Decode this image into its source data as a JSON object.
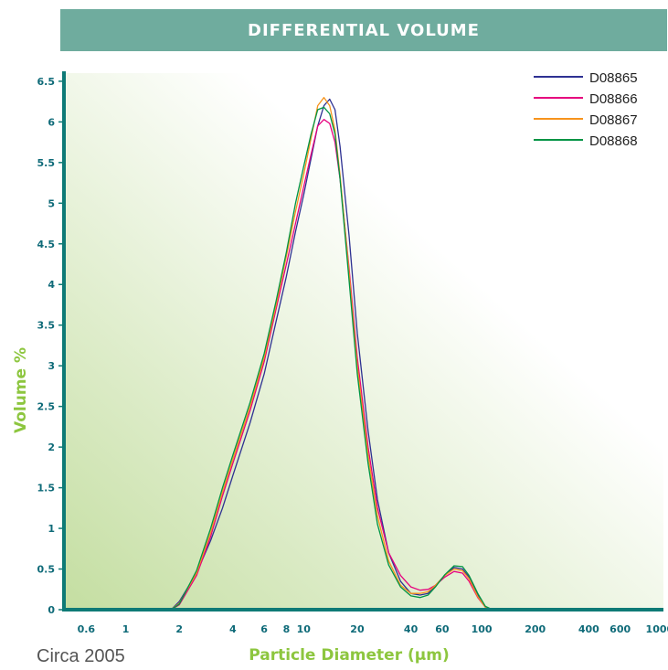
{
  "title": "DIFFERENTIAL VOLUME",
  "footnote": "Circa 2005",
  "colors": {
    "header_bg": "#6fac9e",
    "axis": "#0e7a76",
    "tick_label": "#0e6a78",
    "axis_title": "#8dc63f",
    "gradient_light": "#ffffff",
    "gradient_dark": "#c4dea1"
  },
  "chart_data": {
    "type": "line",
    "title": "DIFFERENTIAL VOLUME",
    "xlabel": "Particle Diameter (µm)",
    "ylabel": "Volume %",
    "x_scale": "log",
    "xlim": [
      0.45,
      1050
    ],
    "ylim": [
      0,
      6.6
    ],
    "x_ticks": [
      0.6,
      1,
      2,
      4,
      6,
      8,
      10,
      20,
      40,
      60,
      100,
      200,
      400,
      600,
      1000
    ],
    "x_tick_labels": [
      "0.6",
      "1",
      "2",
      "4",
      "6",
      "8",
      "10",
      "20",
      "40",
      "60",
      "100",
      "200",
      "400",
      "600",
      "1000"
    ],
    "y_ticks": [
      0,
      0.5,
      1,
      1.5,
      2,
      2.5,
      3,
      3.5,
      4,
      4.5,
      5,
      5.5,
      6,
      6.5
    ],
    "y_tick_labels": [
      "0",
      "0.5",
      "1",
      "1.5",
      "2",
      "2.5",
      "3",
      "3.5",
      "4",
      "4.5",
      "5",
      "5.5",
      "6",
      "6.5"
    ],
    "legend_position": "top-right",
    "grid": false,
    "series": [
      {
        "name": "D08865",
        "color": "#2e3192",
        "points": [
          [
            0.45,
            0
          ],
          [
            1.8,
            0
          ],
          [
            2.0,
            0.1
          ],
          [
            2.5,
            0.45
          ],
          [
            3.0,
            0.85
          ],
          [
            3.5,
            1.25
          ],
          [
            4.0,
            1.65
          ],
          [
            5.0,
            2.3
          ],
          [
            6.0,
            2.9
          ],
          [
            7.0,
            3.55
          ],
          [
            8.0,
            4.1
          ],
          [
            9.0,
            4.65
          ],
          [
            10.0,
            5.1
          ],
          [
            11.0,
            5.55
          ],
          [
            12.0,
            5.95
          ],
          [
            13.0,
            6.2
          ],
          [
            14.0,
            6.28
          ],
          [
            15.0,
            6.15
          ],
          [
            16.0,
            5.7
          ],
          [
            18.0,
            4.6
          ],
          [
            20.0,
            3.4
          ],
          [
            23.0,
            2.2
          ],
          [
            26.0,
            1.35
          ],
          [
            30.0,
            0.7
          ],
          [
            35.0,
            0.35
          ],
          [
            40.0,
            0.2
          ],
          [
            45.0,
            0.18
          ],
          [
            50.0,
            0.2
          ],
          [
            55.0,
            0.3
          ],
          [
            62.0,
            0.42
          ],
          [
            70.0,
            0.52
          ],
          [
            78.0,
            0.5
          ],
          [
            85.0,
            0.4
          ],
          [
            95.0,
            0.18
          ],
          [
            105.0,
            0.03
          ],
          [
            115.0,
            0
          ],
          [
            1050,
            0
          ]
        ]
      },
      {
        "name": "D08866",
        "color": "#e6007e",
        "points": [
          [
            0.45,
            0
          ],
          [
            1.8,
            0
          ],
          [
            2.0,
            0.06
          ],
          [
            2.5,
            0.42
          ],
          [
            3.0,
            0.9
          ],
          [
            3.5,
            1.4
          ],
          [
            4.0,
            1.8
          ],
          [
            5.0,
            2.45
          ],
          [
            6.0,
            3.05
          ],
          [
            7.0,
            3.7
          ],
          [
            8.0,
            4.25
          ],
          [
            9.0,
            4.75
          ],
          [
            10.0,
            5.2
          ],
          [
            11.0,
            5.6
          ],
          [
            12.0,
            5.95
          ],
          [
            13.0,
            6.03
          ],
          [
            14.0,
            5.98
          ],
          [
            15.0,
            5.75
          ],
          [
            16.0,
            5.3
          ],
          [
            18.0,
            4.2
          ],
          [
            20.0,
            3.1
          ],
          [
            23.0,
            2.0
          ],
          [
            26.0,
            1.25
          ],
          [
            30.0,
            0.7
          ],
          [
            35.0,
            0.42
          ],
          [
            40.0,
            0.28
          ],
          [
            45.0,
            0.24
          ],
          [
            50.0,
            0.25
          ],
          [
            55.0,
            0.3
          ],
          [
            62.0,
            0.4
          ],
          [
            70.0,
            0.47
          ],
          [
            78.0,
            0.45
          ],
          [
            85.0,
            0.35
          ],
          [
            95.0,
            0.15
          ],
          [
            105.0,
            0.03
          ],
          [
            115.0,
            0
          ],
          [
            1050,
            0
          ]
        ]
      },
      {
        "name": "D08867",
        "color": "#f7941d",
        "points": [
          [
            0.45,
            0
          ],
          [
            1.8,
            0
          ],
          [
            2.0,
            0.08
          ],
          [
            2.5,
            0.45
          ],
          [
            3.0,
            0.95
          ],
          [
            3.5,
            1.45
          ],
          [
            4.0,
            1.85
          ],
          [
            5.0,
            2.5
          ],
          [
            6.0,
            3.1
          ],
          [
            7.0,
            3.75
          ],
          [
            8.0,
            4.35
          ],
          [
            9.0,
            4.9
          ],
          [
            10.0,
            5.35
          ],
          [
            11.0,
            5.8
          ],
          [
            12.0,
            6.2
          ],
          [
            13.0,
            6.3
          ],
          [
            14.0,
            6.2
          ],
          [
            15.0,
            5.9
          ],
          [
            16.0,
            5.35
          ],
          [
            18.0,
            4.15
          ],
          [
            20.0,
            3.0
          ],
          [
            23.0,
            1.9
          ],
          [
            26.0,
            1.15
          ],
          [
            30.0,
            0.6
          ],
          [
            35.0,
            0.3
          ],
          [
            40.0,
            0.2
          ],
          [
            45.0,
            0.2
          ],
          [
            50.0,
            0.22
          ],
          [
            55.0,
            0.3
          ],
          [
            62.0,
            0.42
          ],
          [
            70.0,
            0.5
          ],
          [
            78.0,
            0.48
          ],
          [
            85.0,
            0.38
          ],
          [
            95.0,
            0.16
          ],
          [
            105.0,
            0.03
          ],
          [
            115.0,
            0
          ],
          [
            1050,
            0
          ]
        ]
      },
      {
        "name": "D08868",
        "color": "#009444",
        "points": [
          [
            0.45,
            0
          ],
          [
            1.8,
            0
          ],
          [
            2.0,
            0.07
          ],
          [
            2.5,
            0.48
          ],
          [
            3.0,
            1.0
          ],
          [
            3.5,
            1.5
          ],
          [
            4.0,
            1.9
          ],
          [
            5.0,
            2.55
          ],
          [
            6.0,
            3.15
          ],
          [
            7.0,
            3.8
          ],
          [
            8.0,
            4.4
          ],
          [
            9.0,
            5.0
          ],
          [
            10.0,
            5.45
          ],
          [
            11.0,
            5.85
          ],
          [
            12.0,
            6.15
          ],
          [
            13.0,
            6.18
          ],
          [
            14.0,
            6.1
          ],
          [
            15.0,
            5.85
          ],
          [
            16.0,
            5.3
          ],
          [
            18.0,
            4.05
          ],
          [
            20.0,
            2.9
          ],
          [
            23.0,
            1.8
          ],
          [
            26.0,
            1.05
          ],
          [
            30.0,
            0.55
          ],
          [
            35.0,
            0.28
          ],
          [
            40.0,
            0.17
          ],
          [
            45.0,
            0.15
          ],
          [
            50.0,
            0.18
          ],
          [
            55.0,
            0.28
          ],
          [
            62.0,
            0.43
          ],
          [
            70.0,
            0.54
          ],
          [
            78.0,
            0.53
          ],
          [
            85.0,
            0.42
          ],
          [
            95.0,
            0.2
          ],
          [
            105.0,
            0.04
          ],
          [
            115.0,
            0
          ],
          [
            1050,
            0
          ]
        ]
      }
    ]
  }
}
